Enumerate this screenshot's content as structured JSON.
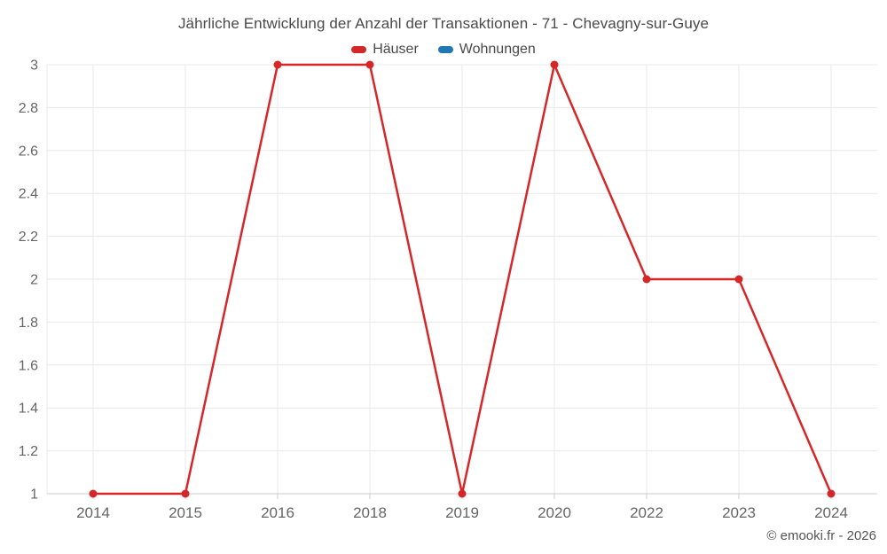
{
  "chart_data": {
    "type": "line",
    "title": "Jährliche Entwicklung der Anzahl der Transaktionen - 71 - Chevagny-sur-Guye",
    "categories": [
      "2014",
      "2015",
      "2016",
      "2018",
      "2019",
      "2020",
      "2022",
      "2023",
      "2024"
    ],
    "series": [
      {
        "name": "Häuser",
        "color": "#d62728",
        "values": [
          1,
          1,
          3,
          3,
          1,
          3,
          2,
          2,
          1
        ]
      },
      {
        "name": "Wohnungen",
        "color": "#1f77b4",
        "values": []
      }
    ],
    "xlabel": "",
    "ylabel": "",
    "ylim": [
      1,
      3
    ],
    "ytick_step": 0.2,
    "yticks": [
      "1",
      "1.2",
      "1.4",
      "1.6",
      "1.8",
      "2",
      "2.2",
      "2.4",
      "2.6",
      "2.8",
      "3"
    ],
    "grid": true,
    "legend_position": "top"
  },
  "footer": {
    "copyright": "© emooki.fr - 2026"
  },
  "style": {
    "grid_color": "#e8e8e8",
    "axis_color": "#cccccc",
    "tick_label_color": "#666666",
    "marker_radius": 4.5,
    "line_width": 2.5
  }
}
